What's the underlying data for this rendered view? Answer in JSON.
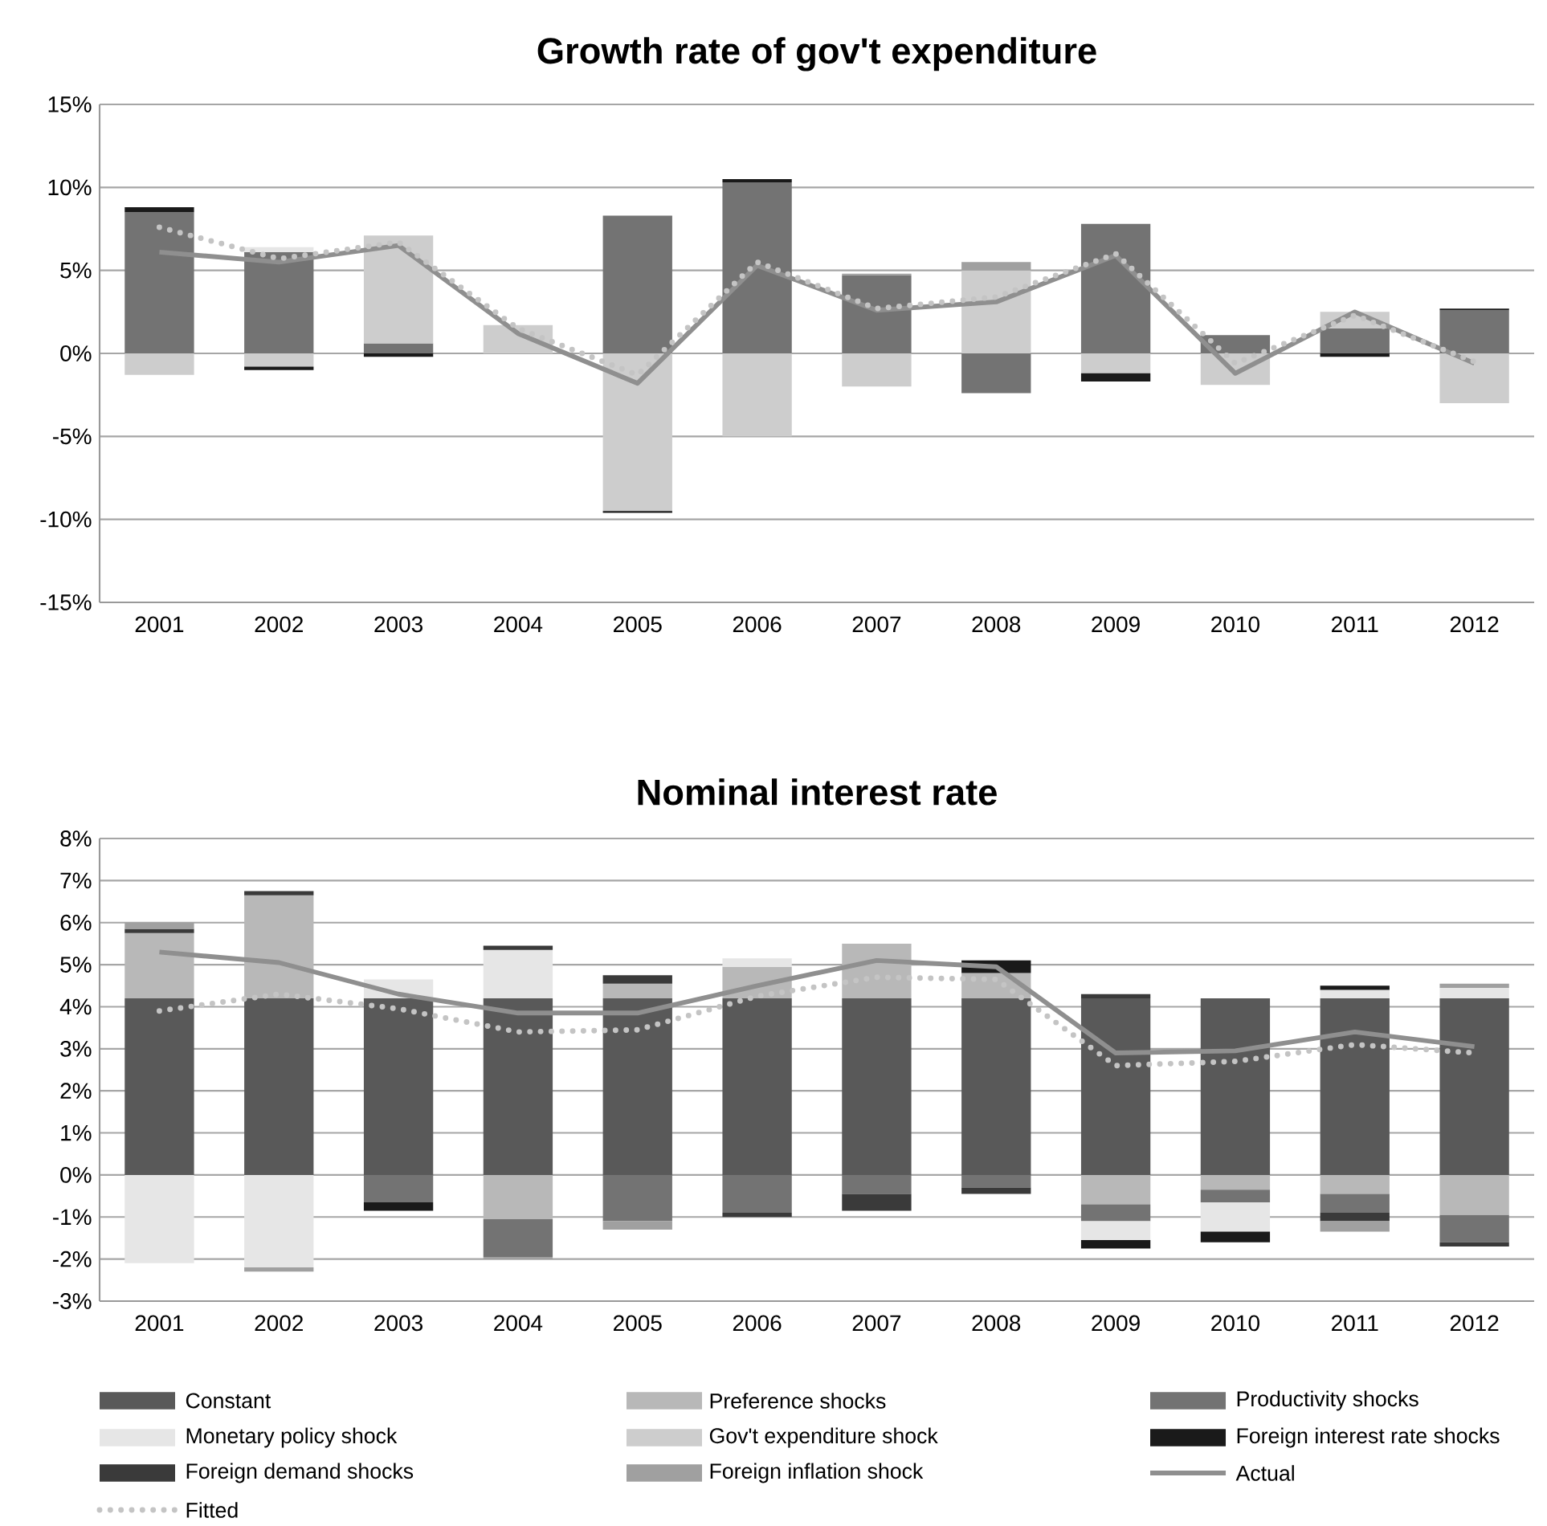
{
  "chart_data": [
    {
      "type": "bar",
      "stacked": true,
      "title": "Growth rate of gov't expenditure",
      "categories": [
        "2001",
        "2002",
        "2003",
        "2004",
        "2005",
        "2006",
        "2007",
        "2008",
        "2009",
        "2010",
        "2011",
        "2012"
      ],
      "ylim": [
        -15,
        15
      ],
      "yticks": [
        {
          "value": -15,
          "label": "-15%"
        },
        {
          "value": -10,
          "label": "-10%"
        },
        {
          "value": -5,
          "label": "-5%"
        },
        {
          "value": 0,
          "label": "0%"
        },
        {
          "value": 5,
          "label": "5%"
        },
        {
          "value": 10,
          "label": "10%"
        },
        {
          "value": 15,
          "label": "15%"
        }
      ],
      "grid": "y",
      "series": [
        {
          "color": "#595959",
          "values": [
            null,
            null,
            null,
            null,
            null,
            null,
            null,
            null,
            null,
            null,
            null,
            null
          ]
        },
        {
          "color": "#b8b8b8",
          "values": [
            null,
            null,
            null,
            null,
            null,
            null,
            null,
            null,
            null,
            null,
            null,
            null
          ]
        },
        {
          "color": "#737373",
          "values": [
            8.5,
            6.1,
            0.6,
            null,
            8.3,
            10.3,
            4.7,
            -2.4,
            7.8,
            1.1,
            1.5,
            2.6
          ]
        },
        {
          "color": "#e6e6e6",
          "values": [
            null,
            0.3,
            null,
            null,
            null,
            null,
            null,
            null,
            null,
            null,
            null,
            null
          ]
        },
        {
          "color": "#cdcdcd",
          "values": [
            -1.3,
            -0.8,
            6.5,
            1.7,
            -9.5,
            -5.0,
            -2.0,
            5.0,
            -1.2,
            -1.9,
            1.0,
            -3.0
          ]
        },
        {
          "color": "#1a1a1a",
          "values": [
            0.3,
            -0.2,
            -0.2,
            null,
            -0.1,
            0.2,
            null,
            null,
            -0.5,
            null,
            -0.2,
            0.1
          ]
        },
        {
          "color": "#3a3a3a",
          "values": [
            null,
            null,
            null,
            null,
            null,
            null,
            null,
            null,
            null,
            null,
            null,
            null
          ]
        },
        {
          "color": "#a0a0a0",
          "values": [
            null,
            null,
            null,
            null,
            null,
            null,
            0.1,
            0.5,
            null,
            null,
            null,
            null
          ]
        },
        {
          "type": "line",
          "line_style": "solid",
          "color": "#8f8f8f",
          "values": [
            6.1,
            5.5,
            6.5,
            1.2,
            -1.8,
            5.3,
            2.6,
            3.1,
            5.9,
            -1.2,
            2.5,
            -0.6
          ]
        },
        {
          "type": "line",
          "line_style": "dotted",
          "color": "#c4c4c4",
          "values": [
            7.6,
            5.7,
            6.7,
            1.5,
            -1.3,
            5.5,
            2.7,
            3.4,
            6.0,
            -0.6,
            2.3,
            -0.5
          ]
        }
      ]
    },
    {
      "type": "bar",
      "stacked": true,
      "title": "Nominal interest rate",
      "categories": [
        "2001",
        "2002",
        "2003",
        "2004",
        "2005",
        "2006",
        "2007",
        "2008",
        "2009",
        "2010",
        "2011",
        "2012"
      ],
      "ylim": [
        -3,
        8
      ],
      "yticks": [
        {
          "value": -3,
          "label": "-3%"
        },
        {
          "value": -2,
          "label": "-2%"
        },
        {
          "value": -1,
          "label": "-1%"
        },
        {
          "value": 0,
          "label": "0%"
        },
        {
          "value": 1,
          "label": "1%"
        },
        {
          "value": 2,
          "label": "2%"
        },
        {
          "value": 3,
          "label": "3%"
        },
        {
          "value": 4,
          "label": "4%"
        },
        {
          "value": 5,
          "label": "5%"
        },
        {
          "value": 6,
          "label": "6%"
        },
        {
          "value": 7,
          "label": "7%"
        },
        {
          "value": 8,
          "label": "8%"
        }
      ],
      "grid": "y",
      "legend": "bottom",
      "series": [
        {
          "name": "Constant",
          "color": "#595959",
          "values": [
            4.2,
            4.2,
            4.2,
            4.2,
            4.2,
            4.2,
            4.2,
            4.2,
            4.2,
            4.2,
            4.2,
            4.2
          ]
        },
        {
          "name": "Preference shocks",
          "color": "#b8b8b8",
          "values": [
            1.55,
            2.45,
            null,
            -1.05,
            0.35,
            0.75,
            1.3,
            0.6,
            -0.7,
            -0.35,
            -0.45,
            -0.95
          ]
        },
        {
          "name": "Productivity shocks",
          "color": "#737373",
          "values": [
            null,
            null,
            -0.65,
            -0.9,
            -1.1,
            -0.9,
            -0.45,
            -0.3,
            -0.4,
            -0.3,
            -0.45,
            -0.65
          ]
        },
        {
          "name": "Monetary policy shock",
          "color": "#e6e6e6",
          "values": [
            -2.1,
            -2.2,
            0.45,
            1.15,
            null,
            0.2,
            null,
            null,
            -0.45,
            -0.7,
            0.2,
            0.25
          ]
        },
        {
          "name": "Gov't expenditure shock",
          "color": "#cdcdcd",
          "values": [
            null,
            null,
            null,
            null,
            null,
            null,
            null,
            null,
            null,
            null,
            null,
            null
          ]
        },
        {
          "name": "Foreign interest rate shocks",
          "color": "#1a1a1a",
          "values": [
            null,
            null,
            -0.2,
            null,
            null,
            null,
            null,
            0.3,
            -0.2,
            -0.25,
            0.1,
            null
          ]
        },
        {
          "name": "Foreign demand shocks",
          "color": "#3a3a3a",
          "values": [
            0.1,
            0.1,
            null,
            0.1,
            0.2,
            -0.1,
            -0.4,
            -0.15,
            0.1,
            null,
            -0.2,
            -0.1
          ]
        },
        {
          "name": "Foreign inflation shock",
          "color": "#a0a0a0",
          "values": [
            0.15,
            -0.1,
            null,
            -0.05,
            -0.2,
            null,
            null,
            null,
            null,
            null,
            -0.25,
            0.1
          ]
        },
        {
          "name": "Actual",
          "type": "line",
          "line_style": "solid",
          "color": "#8f8f8f",
          "values": [
            5.3,
            5.05,
            4.3,
            3.85,
            3.85,
            4.5,
            5.1,
            4.95,
            2.9,
            2.95,
            3.4,
            3.05
          ]
        },
        {
          "name": "Fitted",
          "type": "line",
          "line_style": "dotted",
          "color": "#c4c4c4",
          "values": [
            3.9,
            4.3,
            3.95,
            3.4,
            3.45,
            4.25,
            4.7,
            4.65,
            2.6,
            2.7,
            3.1,
            2.9
          ]
        }
      ]
    }
  ]
}
